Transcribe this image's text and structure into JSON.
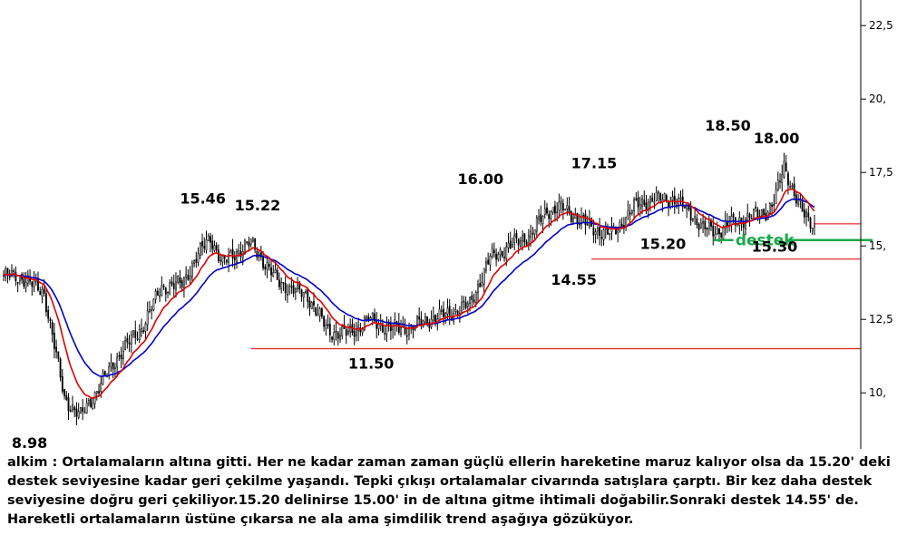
{
  "commentary": "alkim : Ortalamaların altına gitti. Her ne kadar zaman zaman güçlü ellerin hareketine maruz kalıyor olsa da 15.20' deki destek seviyesine kadar geri çekilme yaşandı. Tepki çıkışı ortalamalar civarında satışlara çarptı. Bir kez daha destek seviyesine doğru geri çekiliyor.15.20 delinirse 15.00' in de altına gitme ihtimali doğabilir.Sonraki destek 14.55' de. Hareketli ortalamaların üstüne çıkarsa ne ala ama şimdilik trend aşağıya gözüküyor.",
  "chart_data": {
    "type": "candlestick",
    "ylim": [
      7.8,
      23.0
    ],
    "y_ticks": [
      "10,",
      "12,5",
      "15,",
      "17,5",
      "20,",
      "22,5"
    ],
    "y_tick_values": [
      10,
      12.5,
      15,
      17.5,
      20,
      22.5
    ],
    "y_axis_position": "right",
    "grid": false,
    "colors": {
      "candle": "#000000",
      "ma_fast": "#e00000",
      "ma_slow": "#0000cc",
      "level": "#e00000",
      "support": "#1aa84a"
    },
    "price_keypoints": [
      [
        0,
        14.0
      ],
      [
        10,
        13.9
      ],
      [
        20,
        13.4
      ],
      [
        30,
        9.8
      ],
      [
        38,
        9.2
      ],
      [
        48,
        10.3
      ],
      [
        58,
        11.4
      ],
      [
        68,
        12.2
      ],
      [
        78,
        13.6
      ],
      [
        88,
        13.7
      ],
      [
        95,
        14.6
      ],
      [
        102,
        15.3
      ],
      [
        108,
        14.4
      ],
      [
        115,
        14.8
      ],
      [
        122,
        15.1
      ],
      [
        130,
        14.3
      ],
      [
        135,
        13.8
      ],
      [
        140,
        13.6
      ],
      [
        150,
        13.3
      ],
      [
        160,
        12.1
      ],
      [
        170,
        12.0
      ],
      [
        180,
        12.5
      ],
      [
        190,
        12.2
      ],
      [
        200,
        12.2
      ],
      [
        210,
        12.5
      ],
      [
        220,
        12.7
      ],
      [
        230,
        13.0
      ],
      [
        240,
        14.6
      ],
      [
        250,
        15.0
      ],
      [
        260,
        15.4
      ],
      [
        268,
        16.2
      ],
      [
        275,
        16.3
      ],
      [
        282,
        16.0
      ],
      [
        290,
        15.6
      ],
      [
        300,
        15.4
      ],
      [
        305,
        15.8
      ],
      [
        312,
        16.4
      ],
      [
        320,
        16.6
      ],
      [
        330,
        16.6
      ],
      [
        338,
        16.2
      ],
      [
        345,
        15.6
      ],
      [
        352,
        15.5
      ],
      [
        360,
        15.8
      ],
      [
        368,
        16.0
      ],
      [
        375,
        16.1
      ],
      [
        380,
        16.5
      ],
      [
        385,
        17.7
      ],
      [
        390,
        16.8
      ],
      [
        395,
        16.0
      ],
      [
        400,
        15.7
      ]
    ],
    "levels": [
      {
        "value": 11.5,
        "from_x": 122
      },
      {
        "value": 14.55,
        "from_x": 290
      },
      {
        "value": 15.75,
        "from_x": 400
      }
    ],
    "support": {
      "value": 15.2,
      "label": "destek"
    },
    "annotations": [
      {
        "text": "8.98",
        "x": 12,
        "value": 8.98
      },
      {
        "text": "15.46",
        "x": 95,
        "value": 15.46
      },
      {
        "text": "15.22",
        "x": 122,
        "value": 15.22
      },
      {
        "text": "11.50",
        "x": 178,
        "value": 11.5
      },
      {
        "text": "16.00",
        "x": 232,
        "value": 16.0
      },
      {
        "text": "17.15",
        "x": 288,
        "value": 17.15
      },
      {
        "text": "14.55",
        "x": 278,
        "value": 14.55
      },
      {
        "text": "15.20",
        "x": 322,
        "value": 15.2
      },
      {
        "text": "18.50",
        "x": 354,
        "value": 18.5
      },
      {
        "text": "18.00",
        "x": 378,
        "value": 18.0
      },
      {
        "text": "15.30",
        "x": 377,
        "value": 15.3
      }
    ]
  }
}
